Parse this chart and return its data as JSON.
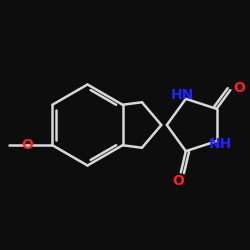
{
  "background_color": "#0d0d0d",
  "bond_color": "#d8d8d8",
  "bond_width": 1.8,
  "atom_colors": {
    "O": "#ff2020",
    "N": "#2222ff"
  },
  "font_size": 10,
  "canvas_xlim": [
    0,
    10
  ],
  "canvas_ylim": [
    0,
    10
  ],
  "figsize": [
    2.5,
    2.5
  ],
  "dpi": 100
}
